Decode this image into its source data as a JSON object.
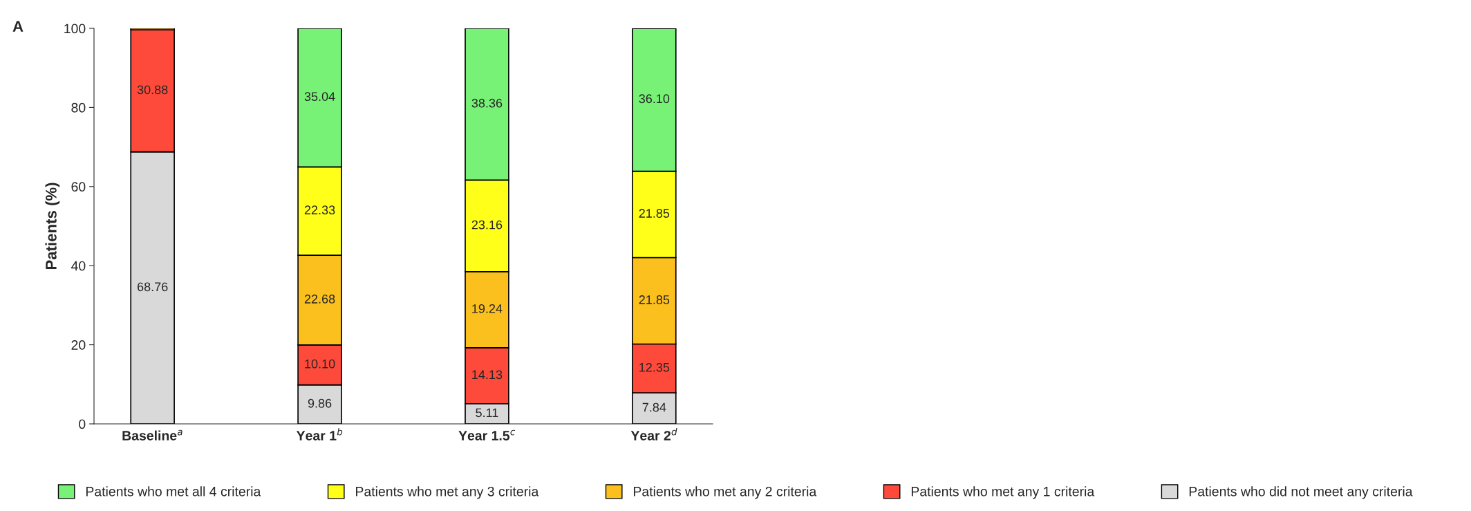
{
  "chart_data": {
    "type": "bar",
    "stacked": true,
    "ylabel": "Patients (%)",
    "categories": [
      "Baseline$^{a}$",
      "Year 1$^{b}$",
      "Year 1.5$^{c}$",
      "Year 2$^{d}$"
    ],
    "series": [
      {
        "name": "Patients who did not meet any criteria",
        "color": "#d9d9d9",
        "values": [
          68.76,
          9.86,
          5.11,
          7.84
        ],
        "value_labels": [
          "68.76",
          "9.86",
          "5.11",
          "7.84"
        ]
      },
      {
        "name": "Patients who met any 1 criteria",
        "color": "#fe4a3a",
        "values": [
          30.88,
          10.1,
          14.13,
          12.35
        ],
        "value_labels": [
          "30.88",
          "10.10",
          "14.13",
          "12.35"
        ]
      },
      {
        "name": "Patients who met any 2 criteria",
        "color": "#fbbf1e",
        "values": [
          0.4,
          22.68,
          19.24,
          21.85
        ],
        "value_labels": [
          null,
          "22.68",
          "19.24",
          "21.85"
        ]
      },
      {
        "name": "Patients who met any 3 criteria",
        "color": "#ffff1a",
        "values": [
          null,
          22.33,
          23.16,
          21.85
        ],
        "value_labels": [
          null,
          "22.33",
          "23.16",
          "21.85"
        ]
      },
      {
        "name": "Patients who met all 4 criteria",
        "color": "#77f277",
        "values": [
          null,
          35.04,
          38.36,
          36.1
        ],
        "value_labels": [
          null,
          "35.04",
          "38.36",
          "36.10"
        ]
      }
    ],
    "ylim": [
      0,
      100
    ],
    "yticks": [
      0,
      20,
      40,
      60,
      80,
      100
    ],
    "grid": false,
    "legend": "bottom",
    "annotations": [
      "A"
    ]
  }
}
